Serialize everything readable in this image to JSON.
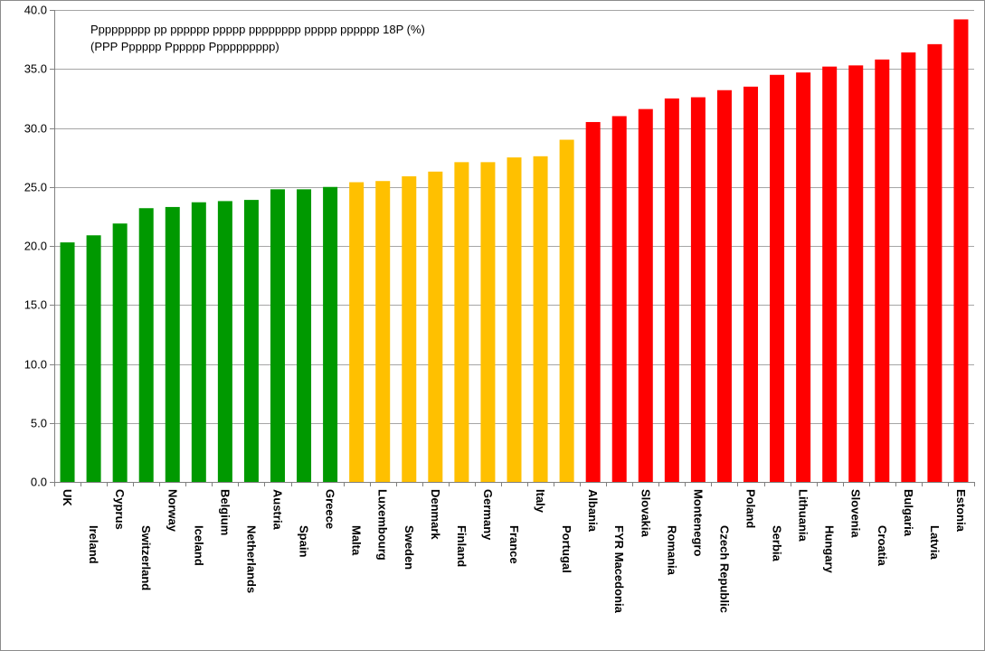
{
  "chart_data": {
    "type": "bar",
    "title": "Ppppppppp pp pppppp ppppp pppppppp ppppp pppppp 18P (%)",
    "subtitle": "(PPP Pppppp Pppppp Pppppppppp)",
    "xlabel": "",
    "ylabel": "",
    "ylim": [
      0,
      40
    ],
    "yticks": [
      "0.0",
      "5.0",
      "10.0",
      "15.0",
      "20.0",
      "25.0",
      "30.0",
      "35.0",
      "40.0"
    ],
    "grid": true,
    "categories": [
      "UK",
      "Ireland",
      "Cyprus",
      "Switzerland",
      "Norway",
      "Iceland",
      "Belgium",
      "Netherlands",
      "Austria",
      "Spain",
      "Greece",
      "Malta",
      "Luxembourg",
      "Sweden",
      "Denmark",
      "Finland",
      "Germany",
      "France",
      "Italy",
      "Portugal",
      "Albania",
      "FYR Macedonia",
      "Slovakia",
      "Romania",
      "Montenegro",
      "Czech Republic",
      "Poland",
      "Serbia",
      "Lithuania",
      "Hungary",
      "Slovenia",
      "Croatia",
      "Bulgaria",
      "Latvia",
      "Estonia"
    ],
    "values": [
      20.3,
      20.9,
      21.9,
      23.2,
      23.3,
      23.7,
      23.8,
      23.9,
      24.8,
      24.8,
      25.0,
      25.4,
      25.5,
      25.9,
      26.3,
      27.1,
      27.1,
      27.5,
      27.6,
      29.0,
      30.5,
      31.0,
      31.6,
      32.5,
      32.6,
      33.2,
      33.5,
      34.5,
      34.7,
      35.2,
      35.3,
      35.8,
      36.4,
      37.1,
      39.2
    ],
    "bar_colors": [
      "#009900",
      "#009900",
      "#009900",
      "#009900",
      "#009900",
      "#009900",
      "#009900",
      "#009900",
      "#009900",
      "#009900",
      "#009900",
      "#ffc000",
      "#ffc000",
      "#ffc000",
      "#ffc000",
      "#ffc000",
      "#ffc000",
      "#ffc000",
      "#ffc000",
      "#ffc000",
      "#ff0000",
      "#ff0000",
      "#ff0000",
      "#ff0000",
      "#ff0000",
      "#ff0000",
      "#ff0000",
      "#ff0000",
      "#ff0000",
      "#ff0000",
      "#ff0000",
      "#ff0000",
      "#ff0000",
      "#ff0000",
      "#ff0000"
    ],
    "gridline_color": "#a6a6a6"
  }
}
